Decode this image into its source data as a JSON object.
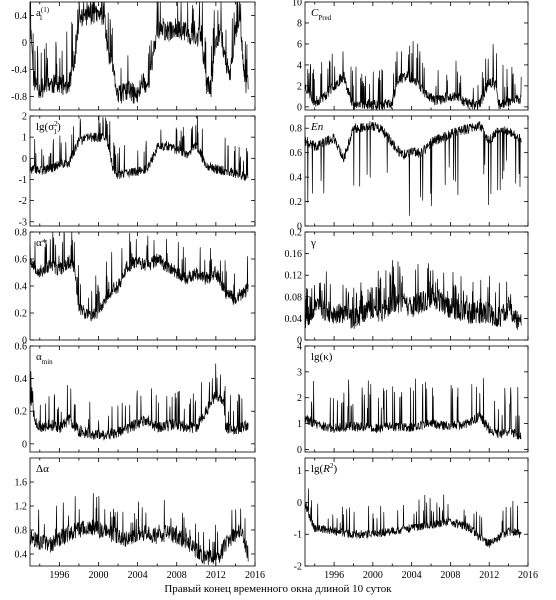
{
  "figure": {
    "caption": "Правый конец временного окна длиной 10 суток"
  },
  "chart_data": [
    {
      "id": "a1",
      "type": "line",
      "column": "left",
      "row": 0,
      "label_html": "a<tspan font-size='7' baseline-shift='super'>(1)</tspan><tspan font-size='7' baseline-shift='sub' dx='-10'>1</tspan>",
      "xlim": [
        1993,
        2016
      ],
      "ylim": [
        -1.0,
        0.6
      ],
      "yticks": [
        0.4,
        0,
        -0.4,
        -0.8
      ],
      "ytick_labels": [
        "0.4",
        "0",
        "-0.4",
        "-0.8"
      ],
      "xticks": [
        1996,
        2000,
        2004,
        2008,
        2012,
        2016
      ],
      "shape": [
        [
          1993.0,
          0.4
        ],
        [
          1993.4,
          -0.55
        ],
        [
          1994.0,
          -0.7
        ],
        [
          1995.0,
          -0.6
        ],
        [
          1996.0,
          -0.65
        ],
        [
          1997.0,
          -0.6
        ],
        [
          1997.6,
          -0.3
        ],
        [
          1998.0,
          0.35
        ],
        [
          1999.0,
          0.42
        ],
        [
          2000.0,
          0.4
        ],
        [
          2000.6,
          0.4
        ],
        [
          2001.0,
          -0.2
        ],
        [
          2001.6,
          -0.5
        ],
        [
          2002.0,
          -0.8
        ],
        [
          2003.0,
          -0.7
        ],
        [
          2004.0,
          -0.8
        ],
        [
          2004.5,
          -0.55
        ],
        [
          2005.0,
          -0.65
        ],
        [
          2005.5,
          -0.3
        ],
        [
          2006.0,
          0.2
        ],
        [
          2007.0,
          0.15
        ],
        [
          2008.0,
          0.22
        ],
        [
          2009.0,
          0.15
        ],
        [
          2010.0,
          0.05
        ],
        [
          2010.5,
          0.15
        ],
        [
          2011.0,
          -0.6
        ],
        [
          2011.5,
          -0.7
        ],
        [
          2012.0,
          0.0
        ],
        [
          2012.5,
          0.2
        ],
        [
          2013.0,
          -0.3
        ],
        [
          2013.5,
          -0.45
        ],
        [
          2014.0,
          0.2
        ],
        [
          2014.5,
          0.28
        ],
        [
          2015.0,
          -0.6
        ],
        [
          2015.3,
          -0.6
        ]
      ],
      "noise": 0.15,
      "spikes": 0.12,
      "spike_amp": 0.7,
      "seed": 11
    },
    {
      "id": "cpred",
      "type": "line",
      "column": "right",
      "row": 0,
      "label_html": "<tspan font-style='italic'>C</tspan><tspan font-size='7' baseline-shift='sub'>Pred</tspan>",
      "xlim": [
        1993,
        2016
      ],
      "ylim": [
        -0.3,
        10
      ],
      "yticks": [
        10,
        8,
        6,
        4,
        2,
        0
      ],
      "ytick_labels": [
        "10",
        "8",
        "6",
        "4",
        "2",
        "0"
      ],
      "xticks": [
        1996,
        2000,
        2004,
        2008,
        2012,
        2016
      ],
      "shape": [
        [
          1993.0,
          2.0
        ],
        [
          1994.0,
          0.4
        ],
        [
          1995.0,
          1.0
        ],
        [
          1996.0,
          2.0
        ],
        [
          1997.0,
          3.0
        ],
        [
          1997.8,
          0.5
        ],
        [
          1998.0,
          0.25
        ],
        [
          2000.0,
          0.2
        ],
        [
          2002.0,
          0.3
        ],
        [
          2002.5,
          2.5
        ],
        [
          2003.5,
          3.0
        ],
        [
          2004.5,
          2.5
        ],
        [
          2005.5,
          1.2
        ],
        [
          2006.5,
          0.6
        ],
        [
          2008.0,
          1.0
        ],
        [
          2009.0,
          0.8
        ],
        [
          2009.8,
          0.3
        ],
        [
          2011.0,
          0.2
        ],
        [
          2012.0,
          2.5
        ],
        [
          2012.7,
          2.0
        ],
        [
          2013.0,
          0.3
        ],
        [
          2015.3,
          0.8
        ]
      ],
      "noise": 0.5,
      "spikes": 0.1,
      "spike_amp": 3.5,
      "seed": 23
    },
    {
      "id": "lgsigma",
      "type": "line",
      "column": "left",
      "row": 1,
      "label_html": "lg(σ<tspan font-size='7' baseline-shift='super'>2</tspan><tspan font-size='7' baseline-shift='sub' dx='-4'>1</tspan>)",
      "xlim": [
        1993,
        2016
      ],
      "ylim": [
        -3.2,
        2.0
      ],
      "yticks": [
        2,
        1,
        0,
        -1,
        -2,
        -3
      ],
      "ytick_labels": [
        "2",
        "1",
        "0",
        "-1",
        "-2",
        "-3"
      ],
      "xticks": [
        1996,
        2000,
        2004,
        2008,
        2012,
        2016
      ],
      "shape": [
        [
          1993.0,
          -0.5
        ],
        [
          1994.0,
          -0.6
        ],
        [
          1995.0,
          -0.5
        ],
        [
          1996.0,
          -0.3
        ],
        [
          1997.0,
          -0.2
        ],
        [
          1998.0,
          0.8
        ],
        [
          1999.0,
          1.0
        ],
        [
          2000.0,
          1.0
        ],
        [
          2000.8,
          1.0
        ],
        [
          2001.5,
          -0.5
        ],
        [
          2002.0,
          -0.8
        ],
        [
          2004.0,
          -0.6
        ],
        [
          2005.0,
          -0.5
        ],
        [
          2006.0,
          0.5
        ],
        [
          2007.0,
          0.6
        ],
        [
          2008.0,
          0.4
        ],
        [
          2009.0,
          0.2
        ],
        [
          2010.0,
          0.6
        ],
        [
          2011.0,
          -0.3
        ],
        [
          2012.0,
          -0.5
        ],
        [
          2013.0,
          -0.6
        ],
        [
          2014.0,
          -0.7
        ],
        [
          2015.3,
          -0.9
        ]
      ],
      "noise": 0.22,
      "spikes": 0.08,
      "spike_amp": 1.5,
      "seed": 37
    },
    {
      "id": "en",
      "type": "line",
      "column": "right",
      "row": 1,
      "label_html": "<tspan font-style='italic'>En</tspan>",
      "xlim": [
        1993,
        2016
      ],
      "ylim": [
        0,
        0.9
      ],
      "yticks": [
        0.8,
        0.6,
        0.4,
        0.2,
        0
      ],
      "ytick_labels": [
        "0.8",
        "0.6",
        "0.4",
        "0.2",
        "0"
      ],
      "xticks": [
        1996,
        2000,
        2004,
        2008,
        2012,
        2016
      ],
      "shape": [
        [
          1993.0,
          0.7
        ],
        [
          1994.0,
          0.65
        ],
        [
          1996.0,
          0.72
        ],
        [
          1997.0,
          0.55
        ],
        [
          1998.0,
          0.8
        ],
        [
          2000.0,
          0.82
        ],
        [
          2001.0,
          0.78
        ],
        [
          2002.0,
          0.68
        ],
        [
          2003.0,
          0.58
        ],
        [
          2004.0,
          0.6
        ],
        [
          2005.0,
          0.6
        ],
        [
          2006.0,
          0.68
        ],
        [
          2007.0,
          0.72
        ],
        [
          2008.0,
          0.75
        ],
        [
          2009.0,
          0.78
        ],
        [
          2010.0,
          0.8
        ],
        [
          2011.0,
          0.82
        ],
        [
          2012.0,
          0.7
        ],
        [
          2013.0,
          0.78
        ],
        [
          2014.0,
          0.78
        ],
        [
          2015.3,
          0.7
        ]
      ],
      "noise": 0.04,
      "spikes": 0.06,
      "spike_amp": -0.55,
      "seed": 41
    },
    {
      "id": "alphastar",
      "type": "line",
      "column": "left",
      "row": 2,
      "label_html": "α*",
      "xlim": [
        1993,
        2016
      ],
      "ylim": [
        0,
        0.8
      ],
      "yticks": [
        0.8,
        0.6,
        0.4,
        0.2,
        0
      ],
      "ytick_labels": [
        "0.8",
        "0.6",
        "0.4",
        "0.2",
        "0"
      ],
      "xticks": [
        1996,
        2000,
        2004,
        2008,
        2012,
        2016
      ],
      "shape": [
        [
          1993.0,
          0.6
        ],
        [
          1994.0,
          0.5
        ],
        [
          1995.0,
          0.55
        ],
        [
          1996.0,
          0.52
        ],
        [
          1997.0,
          0.58
        ],
        [
          1997.5,
          0.55
        ],
        [
          1998.0,
          0.25
        ],
        [
          1999.0,
          0.18
        ],
        [
          2000.0,
          0.2
        ],
        [
          2001.0,
          0.35
        ],
        [
          2002.0,
          0.4
        ],
        [
          2003.0,
          0.55
        ],
        [
          2004.0,
          0.58
        ],
        [
          2005.0,
          0.55
        ],
        [
          2006.0,
          0.6
        ],
        [
          2007.0,
          0.55
        ],
        [
          2008.0,
          0.5
        ],
        [
          2009.0,
          0.45
        ],
        [
          2010.0,
          0.5
        ],
        [
          2011.0,
          0.45
        ],
        [
          2012.0,
          0.5
        ],
        [
          2013.0,
          0.35
        ],
        [
          2014.0,
          0.3
        ],
        [
          2015.3,
          0.38
        ]
      ],
      "noise": 0.05,
      "spikes": 0.1,
      "spike_amp": 0.25,
      "seed": 53
    },
    {
      "id": "gamma",
      "type": "line",
      "column": "right",
      "row": 2,
      "label_html": "γ",
      "xlim": [
        1993,
        2016
      ],
      "ylim": [
        0,
        0.2
      ],
      "yticks": [
        0.2,
        0.16,
        0.12,
        0.08,
        0.04,
        0
      ],
      "ytick_labels": [
        "0.2",
        "0.16",
        "0.12",
        "0.08",
        "0.04",
        "0"
      ],
      "xticks": [
        1996,
        2000,
        2004,
        2008,
        2012,
        2016
      ],
      "shape": [
        [
          1993.0,
          0.04
        ],
        [
          1994.0,
          0.06
        ],
        [
          1996.0,
          0.05
        ],
        [
          1998.0,
          0.04
        ],
        [
          2000.0,
          0.06
        ],
        [
          2001.0,
          0.05
        ],
        [
          2002.0,
          0.07
        ],
        [
          2003.0,
          0.07
        ],
        [
          2004.0,
          0.06
        ],
        [
          2006.0,
          0.08
        ],
        [
          2008.0,
          0.06
        ],
        [
          2010.0,
          0.05
        ],
        [
          2012.0,
          0.05
        ],
        [
          2013.0,
          0.04
        ],
        [
          2014.0,
          0.06
        ],
        [
          2015.3,
          0.03
        ]
      ],
      "noise": 0.02,
      "spikes": 0.12,
      "spike_amp": 0.06,
      "seed": 67
    },
    {
      "id": "alphamin",
      "type": "line",
      "column": "left",
      "row": 3,
      "label_html": "α<tspan font-size='7' baseline-shift='sub'>min</tspan>",
      "xlim": [
        1993,
        2016
      ],
      "ylim": [
        -0.05,
        0.6
      ],
      "yticks": [
        0.6,
        0.4,
        0.2,
        0
      ],
      "ytick_labels": [
        "0.6",
        "0.4",
        "0.2",
        "0"
      ],
      "xticks": [
        1996,
        2000,
        2004,
        2008,
        2012,
        2016
      ],
      "shape": [
        [
          1993.0,
          0.3
        ],
        [
          1993.5,
          0.15
        ],
        [
          1994.0,
          0.1
        ],
        [
          1995.0,
          0.12
        ],
        [
          1996.0,
          0.1
        ],
        [
          1997.0,
          0.15
        ],
        [
          1998.0,
          0.08
        ],
        [
          2000.0,
          0.05
        ],
        [
          2002.0,
          0.07
        ],
        [
          2003.0,
          0.1
        ],
        [
          2004.0,
          0.12
        ],
        [
          2005.0,
          0.15
        ],
        [
          2006.0,
          0.1
        ],
        [
          2008.0,
          0.12
        ],
        [
          2009.0,
          0.1
        ],
        [
          2010.0,
          0.1
        ],
        [
          2011.0,
          0.2
        ],
        [
          2012.0,
          0.3
        ],
        [
          2012.8,
          0.25
        ],
        [
          2013.0,
          0.1
        ],
        [
          2014.0,
          0.08
        ],
        [
          2015.3,
          0.12
        ]
      ],
      "noise": 0.035,
      "spikes": 0.09,
      "spike_amp": 0.22,
      "seed": 79
    },
    {
      "id": "lgkappa",
      "type": "line",
      "column": "right",
      "row": 3,
      "label_html": "lg(κ)",
      "xlim": [
        1993,
        2016
      ],
      "ylim": [
        -0.1,
        4
      ],
      "yticks": [
        4,
        3,
        2,
        1,
        0
      ],
      "ytick_labels": [
        "4",
        "3",
        "2",
        "1",
        "0"
      ],
      "xticks": [
        1996,
        2000,
        2004,
        2008,
        2012,
        2016
      ],
      "shape": [
        [
          1993.0,
          1.2
        ],
        [
          1994.0,
          1.0
        ],
        [
          1996.0,
          0.8
        ],
        [
          1998.0,
          0.9
        ],
        [
          2000.0,
          0.8
        ],
        [
          2002.0,
          0.9
        ],
        [
          2004.0,
          0.85
        ],
        [
          2006.0,
          1.0
        ],
        [
          2008.0,
          0.9
        ],
        [
          2010.0,
          1.0
        ],
        [
          2011.0,
          1.3
        ],
        [
          2012.0,
          0.8
        ],
        [
          2013.0,
          0.6
        ],
        [
          2014.0,
          0.7
        ],
        [
          2015.3,
          0.5
        ]
      ],
      "noise": 0.18,
      "spikes": 0.09,
      "spike_amp": 1.8,
      "seed": 83
    },
    {
      "id": "dalpha",
      "type": "line",
      "column": "left",
      "row": 4,
      "label_html": "Δα",
      "xlim": [
        1993,
        2016
      ],
      "ylim": [
        0.2,
        2.0
      ],
      "yticks": [
        1.6,
        1.2,
        0.8,
        0.4
      ],
      "ytick_labels": [
        "1.6",
        "1.2",
        "0.8",
        "0.4"
      ],
      "xticks": [
        1996,
        2000,
        2004,
        2008,
        2012,
        2016
      ],
      "shape": [
        [
          1993.0,
          0.7
        ],
        [
          1994.0,
          0.6
        ],
        [
          1995.0,
          0.55
        ],
        [
          1996.0,
          0.65
        ],
        [
          1997.0,
          0.75
        ],
        [
          1998.0,
          0.8
        ],
        [
          1999.0,
          0.85
        ],
        [
          2000.0,
          0.8
        ],
        [
          2001.0,
          0.75
        ],
        [
          2002.0,
          0.7
        ],
        [
          2003.0,
          0.65
        ],
        [
          2004.0,
          0.7
        ],
        [
          2005.0,
          0.75
        ],
        [
          2006.0,
          0.7
        ],
        [
          2007.0,
          0.75
        ],
        [
          2008.0,
          0.7
        ],
        [
          2009.0,
          0.6
        ],
        [
          2009.5,
          0.55
        ],
        [
          2010.0,
          0.45
        ],
        [
          2011.0,
          0.35
        ],
        [
          2012.0,
          0.3
        ],
        [
          2013.0,
          0.55
        ],
        [
          2014.0,
          0.75
        ],
        [
          2014.5,
          0.8
        ],
        [
          2015.3,
          0.4
        ]
      ],
      "noise": 0.14,
      "spikes": 0.07,
      "spike_amp": 0.5,
      "seed": 97
    },
    {
      "id": "lgr2",
      "type": "line",
      "column": "right",
      "row": 4,
      "label_html": "lg(<tspan font-style='italic'>R</tspan><tspan font-size='7' baseline-shift='super'>2</tspan>)",
      "xlim": [
        1993,
        2016
      ],
      "ylim": [
        -2.0,
        1.4
      ],
      "yticks": [
        1,
        0,
        -1,
        -2
      ],
      "ytick_labels": [
        "1",
        "0",
        "-1",
        "-2"
      ],
      "xticks": [
        1996,
        2000,
        2004,
        2008,
        2012,
        2016
      ],
      "shape": [
        [
          1993.0,
          0.0
        ],
        [
          1993.5,
          -0.5
        ],
        [
          1994.0,
          -0.8
        ],
        [
          1996.0,
          -0.9
        ],
        [
          1998.0,
          -1.0
        ],
        [
          2000.0,
          -1.0
        ],
        [
          2002.0,
          -0.9
        ],
        [
          2004.0,
          -0.8
        ],
        [
          2006.0,
          -0.7
        ],
        [
          2008.0,
          -0.6
        ],
        [
          2009.0,
          -0.7
        ],
        [
          2010.0,
          -0.8
        ],
        [
          2011.0,
          -1.1
        ],
        [
          2012.0,
          -1.3
        ],
        [
          2013.0,
          -1.1
        ],
        [
          2014.0,
          -0.9
        ],
        [
          2015.3,
          -1.0
        ]
      ],
      "noise": 0.13,
      "spikes": 0.08,
      "spike_amp": 0.9,
      "seed": 109
    }
  ]
}
